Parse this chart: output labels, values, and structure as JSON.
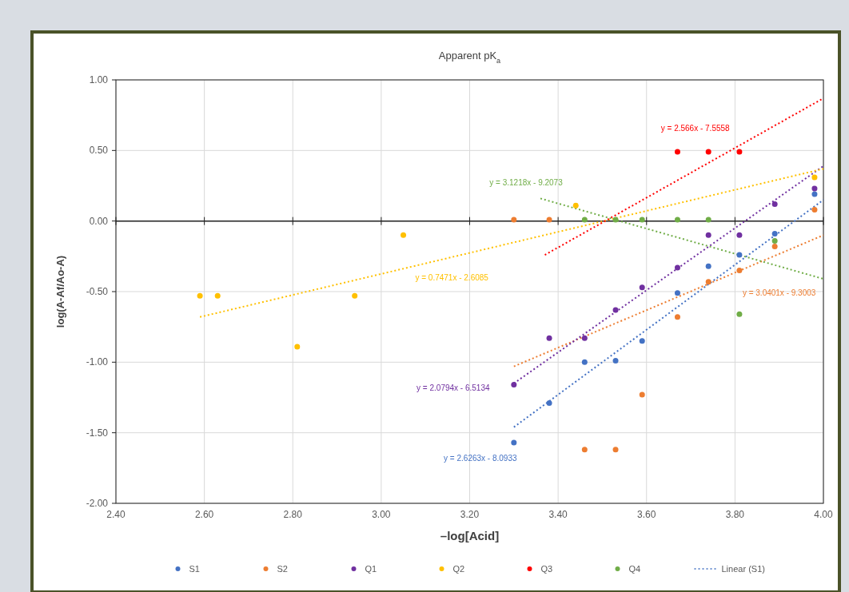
{
  "chart_data": {
    "type": "scatter",
    "title": "Apparent pK$_{a}$",
    "xlabel": "–log[Acid]",
    "ylabel": "log(A-Af/Ao-A)",
    "xlim": [
      2.4,
      4.0
    ],
    "xticks": [
      {
        "value": 2.4,
        "label": "2.40"
      },
      {
        "value": 2.6,
        "label": "2.60"
      },
      {
        "value": 2.8,
        "label": "2.80"
      },
      {
        "value": 3.0,
        "label": "3.00"
      },
      {
        "value": 3.2,
        "label": "3.20"
      },
      {
        "value": 3.4,
        "label": "3.40"
      },
      {
        "value": 3.6,
        "label": "3.60"
      },
      {
        "value": 3.8,
        "label": "3.80"
      },
      {
        "value": 4.0,
        "label": "4.00"
      }
    ],
    "ylim": [
      -2,
      1
    ],
    "yticks": [
      {
        "value": -2,
        "label": "-2.00"
      },
      {
        "value": -1.5,
        "label": "-1.50"
      },
      {
        "value": -1,
        "label": "-1.00"
      },
      {
        "value": -0.5,
        "label": "-0.50"
      },
      {
        "value": 0,
        "label": "0.00"
      },
      {
        "value": 0.5,
        "label": "0.50"
      },
      {
        "value": 1,
        "label": "1.00"
      }
    ],
    "grid": true,
    "legend": "bottom",
    "marker": "circle",
    "series": [
      {
        "name": "S1",
        "color": "#4472c4",
        "x": [
          3.3,
          3.38,
          3.46,
          3.53,
          3.59,
          3.67,
          3.74,
          3.81,
          3.89,
          3.98
        ],
        "values": [
          -1.57,
          -1.29,
          -1.0,
          -0.99,
          -0.85,
          -0.51,
          -0.32,
          -0.24,
          -0.09,
          0.19
        ]
      },
      {
        "name": "S2",
        "color": "#ed7d31",
        "x": [
          3.3,
          3.38,
          3.46,
          3.53,
          3.59,
          3.67,
          3.74,
          3.81,
          3.89,
          3.98
        ],
        "values": [
          0.01,
          0.01,
          -1.62,
          -1.62,
          -1.23,
          -0.68,
          -0.43,
          -0.35,
          -0.18,
          0.08
        ]
      },
      {
        "name": "Q1",
        "color": "#7030a0",
        "x": [
          3.3,
          3.38,
          3.46,
          3.53,
          3.59,
          3.67,
          3.74,
          3.81,
          3.89,
          3.98
        ],
        "values": [
          -1.16,
          -0.83,
          -0.83,
          -0.63,
          -0.47,
          -0.33,
          -0.1,
          -0.1,
          0.12,
          0.23
        ]
      },
      {
        "name": "Q2",
        "color": "#ffc000",
        "x": [
          2.59,
          2.63,
          2.81,
          2.94,
          3.05,
          3.44,
          3.98
        ],
        "values": [
          -0.53,
          -0.53,
          -0.89,
          -0.53,
          -0.1,
          0.11,
          0.31
        ]
      },
      {
        "name": "Q3",
        "color": "#ff0000",
        "x": [
          3.67,
          3.74,
          3.81
        ],
        "values": [
          0.49,
          0.49,
          0.49
        ]
      },
      {
        "name": "Q4",
        "color": "#70ad47",
        "x": [
          3.46,
          3.53,
          3.59,
          3.67,
          3.74,
          3.81,
          3.89
        ],
        "values": [
          0.01,
          0.01,
          0.01,
          0.01,
          0.01,
          -0.66,
          -0.14
        ]
      },
      {
        "type": "line",
        "name": "Linear (S1)",
        "color": "#4472c4",
        "line_style": "dotted",
        "marker": "none",
        "x": [
          3.3,
          4.0
        ],
        "values": [
          -1.46,
          0.15
        ]
      },
      {
        "type": "line",
        "color": "#ed7d31",
        "line_style": "dotted",
        "marker": "none",
        "x": [
          3.3,
          4.0
        ],
        "values": [
          -1.03,
          -0.1
        ]
      },
      {
        "type": "line",
        "color": "#7030a0",
        "line_style": "dotted",
        "marker": "none",
        "x": [
          3.3,
          4.0
        ],
        "values": [
          -1.15,
          0.39
        ]
      },
      {
        "type": "line",
        "color": "#ffc000",
        "line_style": "dotted",
        "marker": "none",
        "x": [
          2.59,
          4.0
        ],
        "values": [
          -0.68,
          0.37
        ]
      },
      {
        "type": "line",
        "color": "#ff0000",
        "line_style": "dotted",
        "marker": "none",
        "x": [
          3.37,
          4.0
        ],
        "values": [
          -0.24,
          0.87
        ]
      },
      {
        "type": "line",
        "color": "#70ad47",
        "line_style": "dotted",
        "marker": "none",
        "x": [
          3.36,
          4.0
        ],
        "values": [
          0.16,
          -0.41
        ]
      }
    ],
    "annotations": [
      "y = 2.6263x - 8.0933",
      "y = 3.0401x - 9.3003",
      "y = 2.0794x - 6.5134",
      "y = 0.7471x - 2.6085",
      "y = 2.566x - 7.5558",
      "y = 3.1218x - 9.2073"
    ]
  }
}
